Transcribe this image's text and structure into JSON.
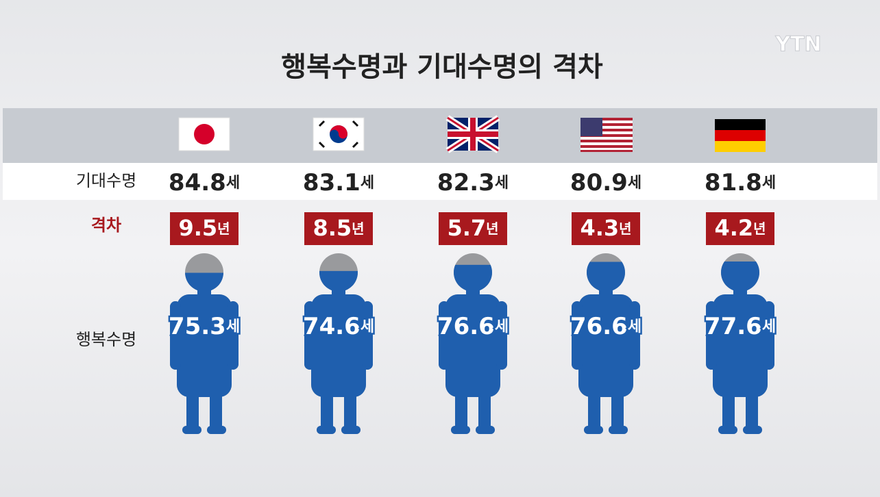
{
  "logo": "YTN",
  "title": "행복수명과 기대수명의 격차",
  "labels": {
    "expectancy": "기대수명",
    "gap": "격차",
    "healthy": "행복수명"
  },
  "units": {
    "age": "세",
    "year": "년"
  },
  "columns": [
    {
      "expectancy": 84.8,
      "gap": 9.5,
      "healthy": 75.3
    },
    {
      "expectancy": 83.1,
      "gap": 8.5,
      "healthy": 74.6
    },
    {
      "expectancy": 82.3,
      "gap": 5.7,
      "healthy": 76.6
    },
    {
      "expectancy": 80.9,
      "gap": 4.3,
      "healthy": 76.6
    },
    {
      "expectancy": 81.8,
      "gap": 4.2,
      "healthy": 77.6
    }
  ]
}
